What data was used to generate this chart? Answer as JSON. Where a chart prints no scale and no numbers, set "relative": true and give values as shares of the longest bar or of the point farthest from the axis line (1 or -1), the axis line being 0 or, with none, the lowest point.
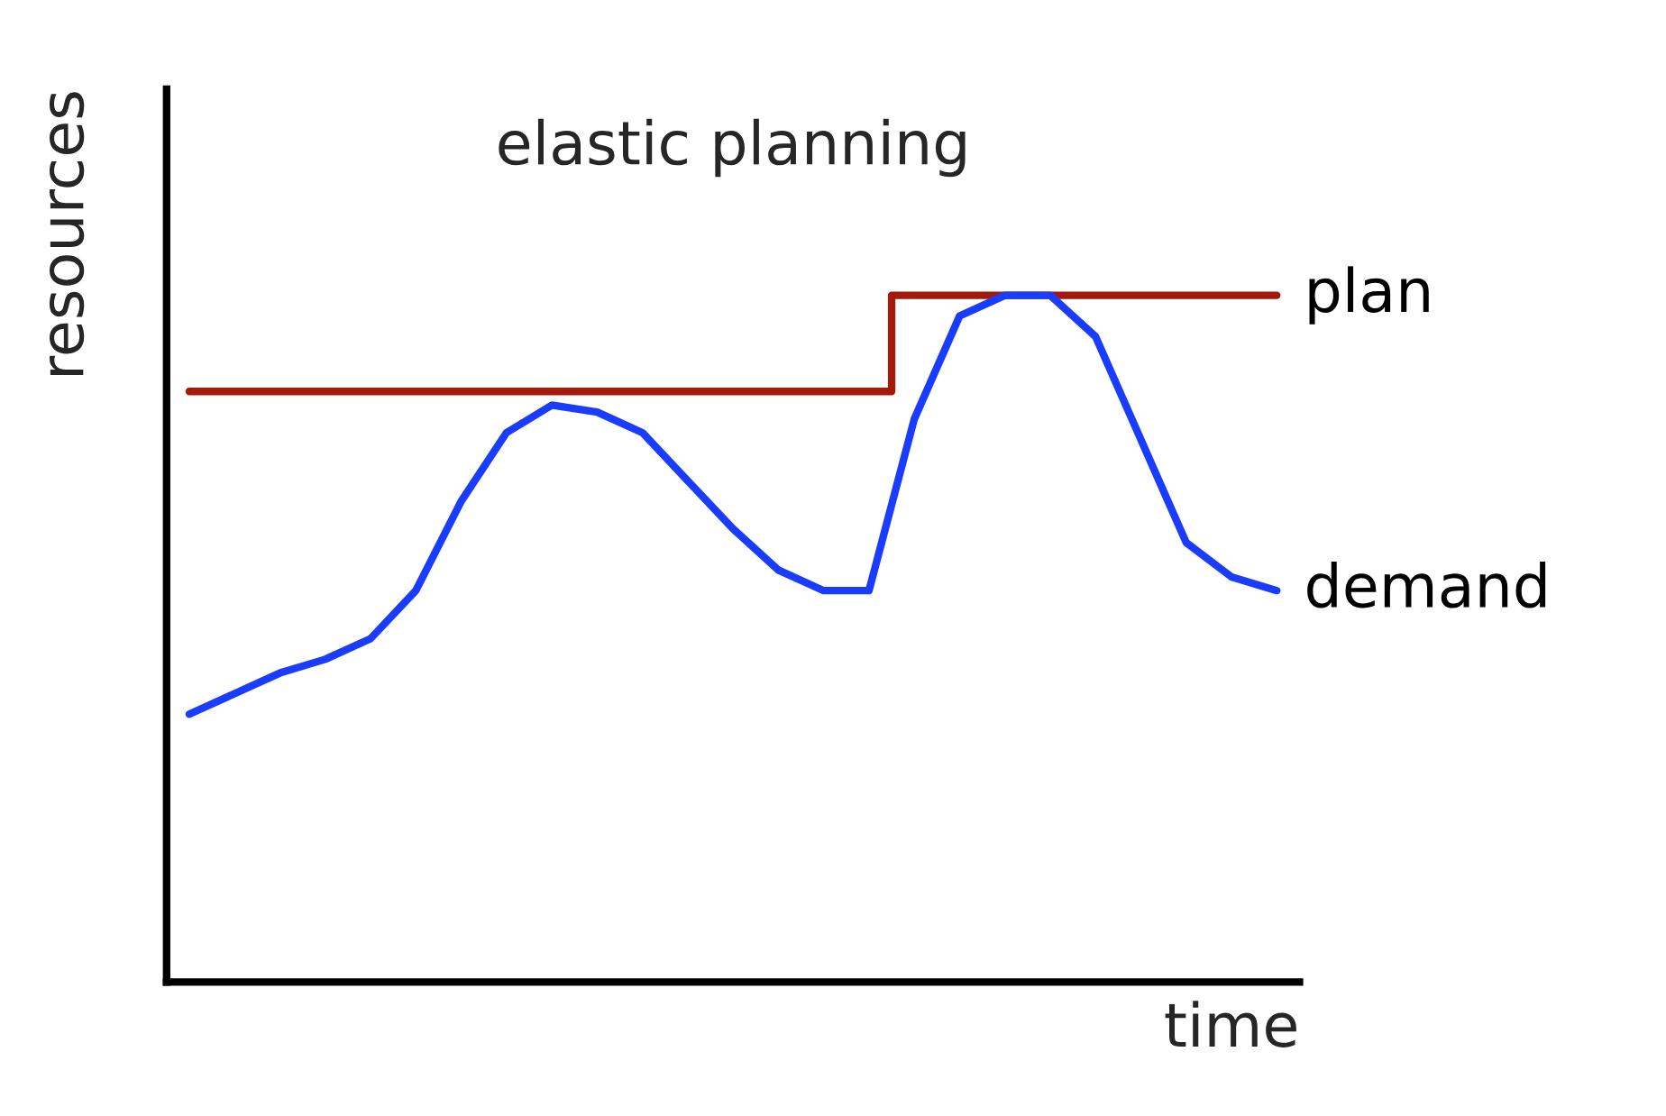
{
  "chart_data": {
    "type": "line",
    "title": "elastic planning",
    "xlabel": "time",
    "ylabel": "resources",
    "relative": true,
    "categories": [
      null,
      null,
      null,
      null,
      null,
      null,
      null,
      null,
      null,
      null,
      null,
      null,
      null,
      null,
      null,
      null,
      null,
      null,
      null,
      null,
      null,
      null,
      null,
      null,
      null
    ],
    "series": [
      {
        "name": "plan",
        "type": "step",
        "color": "#a31a0a",
        "values": [
          0.86,
          0.86,
          0.86,
          0.86,
          0.86,
          0.86,
          0.86,
          0.86,
          0.86,
          0.86,
          0.86,
          0.86,
          0.86,
          0.86,
          0.86,
          0.86,
          1.0,
          1.0,
          1.0,
          1.0,
          1.0,
          1.0,
          1.0,
          1.0,
          1.0
        ]
      },
      {
        "name": "demand",
        "color": "#1a3cff",
        "values": [
          0.39,
          0.42,
          0.45,
          0.47,
          0.5,
          0.57,
          0.7,
          0.8,
          0.84,
          0.83,
          0.8,
          0.73,
          0.66,
          0.6,
          0.57,
          0.57,
          0.82,
          0.97,
          1.0,
          1.0,
          0.94,
          0.79,
          0.64,
          0.59,
          0.57
        ]
      }
    ]
  }
}
